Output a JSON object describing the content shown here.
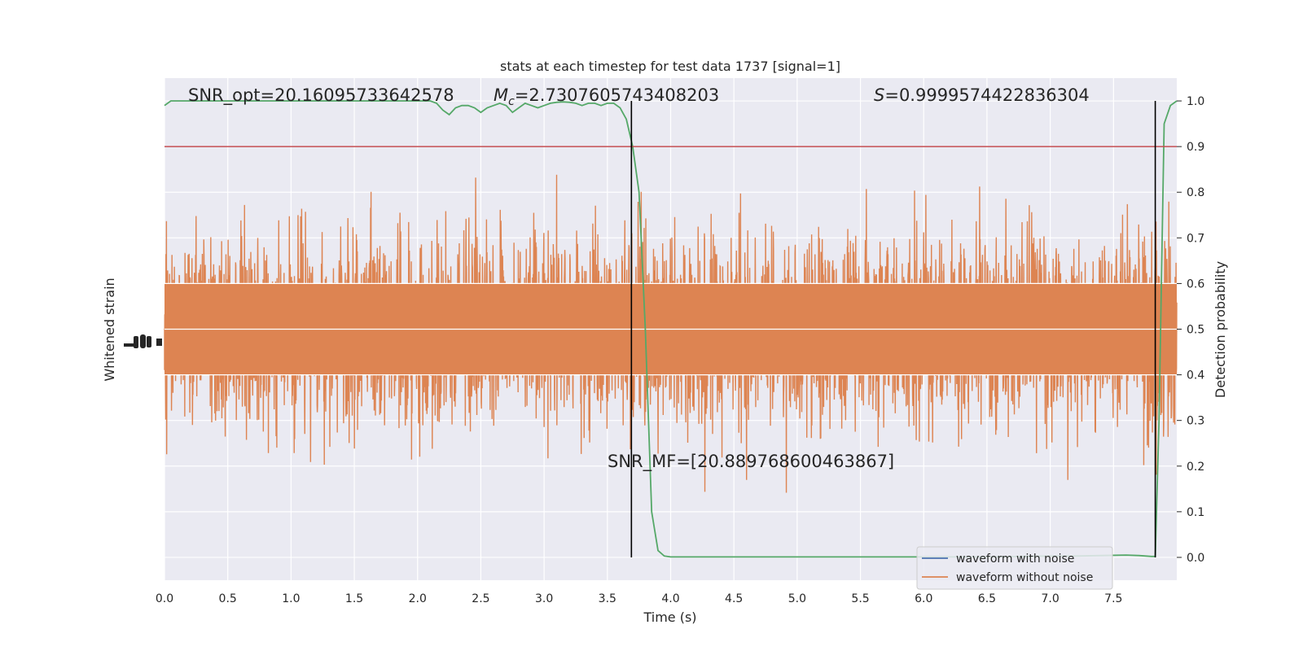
{
  "chart_data": {
    "type": "line",
    "title": "stats at each timestep for test data 1737 [signal=1]",
    "xlabel": "Time (s)",
    "ylabel_left": "Whitened strain",
    "ylabel_right": "Detection probability",
    "xlim": [
      0.0,
      8.0
    ],
    "ylim_right": [
      -0.05,
      1.05
    ],
    "x_ticks": [
      "0.0",
      "0.5",
      "1.0",
      "1.5",
      "2.0",
      "2.5",
      "3.0",
      "3.5",
      "4.0",
      "4.5",
      "5.0",
      "5.5",
      "6.0",
      "6.5",
      "7.0",
      "7.5"
    ],
    "y_ticks_right": [
      "0.0",
      "0.1",
      "0.2",
      "0.3",
      "0.4",
      "0.5",
      "0.6",
      "0.7",
      "0.8",
      "0.9",
      "1.0"
    ],
    "grid": true,
    "legend_position": "lower-right",
    "colors": {
      "background": "#eaeaf2",
      "grid": "#ffffff",
      "noise": "#4c72b0",
      "clean": "#dd8452",
      "probability": "#55a868",
      "threshold": "#c44e52",
      "marker": "#000000"
    },
    "annotations": {
      "snr_opt": "SNR_opt=20.16095733642578",
      "mc_symbol": "M",
      "mc_sub": "c",
      "mc_value": "=2.7307605743408203",
      "s_symbol": "S",
      "s_value": "=0.9999574422836304",
      "snr_mf": "SNR_MF=[20.889768600463867]"
    },
    "threshold": 0.9,
    "vertical_markers": [
      3.69,
      7.83
    ],
    "series": [
      {
        "name": "waveform with noise",
        "role": "noise"
      },
      {
        "name": "waveform without noise",
        "role": "clean"
      }
    ],
    "probability": {
      "x": [
        0.0,
        0.05,
        0.1,
        0.2,
        0.4,
        0.6,
        0.8,
        1.0,
        1.2,
        1.4,
        1.6,
        1.8,
        2.0,
        2.1,
        2.15,
        2.2,
        2.25,
        2.3,
        2.35,
        2.4,
        2.45,
        2.5,
        2.55,
        2.6,
        2.65,
        2.7,
        2.75,
        2.8,
        2.85,
        2.9,
        2.95,
        3.0,
        3.05,
        3.1,
        3.15,
        3.2,
        3.25,
        3.3,
        3.35,
        3.4,
        3.45,
        3.5,
        3.55,
        3.6,
        3.65,
        3.7,
        3.75,
        3.8,
        3.85,
        3.9,
        3.95,
        4.0,
        4.1,
        4.3,
        4.5,
        5.0,
        5.5,
        6.0,
        6.5,
        7.0,
        7.2,
        7.4,
        7.6,
        7.7,
        7.8,
        7.83,
        7.86,
        7.9,
        7.95,
        8.0
      ],
      "y": [
        0.99,
        1.0,
        1.0,
        1.0,
        1.0,
        1.0,
        1.0,
        1.0,
        1.0,
        1.0,
        1.0,
        1.0,
        1.0,
        1.0,
        0.995,
        0.98,
        0.97,
        0.985,
        0.99,
        0.99,
        0.985,
        0.975,
        0.985,
        0.99,
        0.995,
        0.99,
        0.975,
        0.985,
        0.995,
        0.99,
        0.985,
        0.99,
        0.995,
        0.997,
        0.998,
        0.997,
        0.995,
        0.99,
        0.995,
        0.995,
        0.99,
        0.995,
        0.995,
        0.985,
        0.96,
        0.9,
        0.8,
        0.5,
        0.1,
        0.015,
        0.003,
        0.001,
        0.001,
        0.001,
        0.001,
        0.001,
        0.001,
        0.001,
        0.001,
        0.003,
        0.003,
        0.004,
        0.005,
        0.004,
        0.002,
        0.002,
        0.3,
        0.95,
        0.99,
        1.0
      ]
    }
  }
}
